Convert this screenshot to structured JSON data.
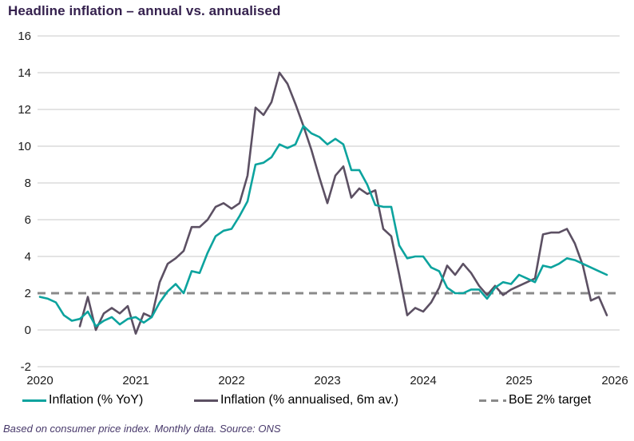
{
  "title": "Headline inflation – annual vs. annualised",
  "footnote": "Based on consumer price index. Monthly data. Source: ONS",
  "colors": {
    "teal": "#0CA39E",
    "purple": "#5C5063",
    "target": "#8A8A8A",
    "grid": "#C9C9C9",
    "title_text": "#35214E",
    "footnote_text": "#47386A",
    "axis_text": "#1A1A1A"
  },
  "legend": [
    {
      "label": "Inflation (% YoY)",
      "color_key": "teal",
      "style": "solid"
    },
    {
      "label": "Inflation (% annualised, 6m av.)",
      "color_key": "purple",
      "style": "solid"
    },
    {
      "label": "BoE 2% target",
      "color_key": "target",
      "style": "dashed"
    }
  ],
  "chart_data": {
    "type": "line",
    "title": "Headline inflation – annual vs. annualised",
    "x_axis": {
      "tick_labels": [
        "2020",
        "2021",
        "2022",
        "2023",
        "2024",
        "2025",
        "2026"
      ],
      "months_per_tick": 12,
      "start": "2020-01",
      "end": "2026-01"
    },
    "y_axis": {
      "min": -2,
      "max": 16,
      "tick_step": 2,
      "tick_labels": [
        "16",
        "14",
        "12",
        "10",
        "8",
        "6",
        "4",
        "2",
        "0",
        "-2"
      ]
    },
    "grid": "horizontal",
    "legend_position": "bottom",
    "target_line": {
      "value": 2,
      "label": "BoE 2% target",
      "style": "dashed"
    },
    "series": [
      {
        "name": "Inflation (% YoY)",
        "color_key": "teal",
        "start_month_index": 0,
        "start_month": "2020-01",
        "values": [
          1.8,
          1.7,
          1.5,
          0.8,
          0.5,
          0.6,
          1.0,
          0.2,
          0.5,
          0.7,
          0.3,
          0.6,
          0.7,
          0.4,
          0.7,
          1.5,
          2.1,
          2.5,
          2.0,
          3.2,
          3.1,
          4.2,
          5.1,
          5.4,
          5.5,
          6.2,
          7.0,
          9.0,
          9.1,
          9.4,
          10.1,
          9.9,
          10.1,
          11.1,
          10.7,
          10.5,
          10.1,
          10.4,
          10.1,
          8.7,
          8.7,
          7.9,
          6.8,
          6.7,
          6.7,
          4.6,
          3.9,
          4.0,
          4.0,
          3.4,
          3.2,
          2.3,
          2.0,
          2.0,
          2.2,
          2.2,
          1.7,
          2.3,
          2.6,
          2.5,
          3.0,
          2.8,
          2.6,
          3.5,
          3.4,
          3.6,
          3.9,
          3.8,
          3.6,
          3.4,
          3.2,
          3.0
        ]
      },
      {
        "name": "Inflation (% annualised, 6m av.)",
        "color_key": "purple",
        "start_month_index": 5,
        "start_month": "2020-06",
        "values": [
          0.2,
          1.8,
          0.0,
          0.9,
          1.2,
          0.9,
          1.3,
          -0.2,
          0.9,
          0.7,
          2.6,
          3.6,
          3.9,
          4.3,
          5.6,
          5.6,
          6.0,
          6.7,
          6.9,
          6.6,
          6.9,
          8.4,
          12.1,
          11.7,
          12.4,
          14.0,
          13.4,
          12.3,
          11.1,
          9.8,
          8.3,
          6.9,
          8.4,
          8.9,
          7.2,
          7.7,
          7.4,
          7.6,
          5.5,
          5.1,
          3.0,
          0.8,
          1.2,
          1.0,
          1.5,
          2.3,
          3.5,
          3.0,
          3.6,
          3.1,
          2.4,
          1.9,
          2.4,
          1.9,
          2.2,
          2.4,
          2.6,
          2.8,
          5.2,
          5.3,
          5.3,
          5.5,
          4.7,
          3.5,
          1.6,
          1.8,
          0.8
        ]
      }
    ]
  }
}
